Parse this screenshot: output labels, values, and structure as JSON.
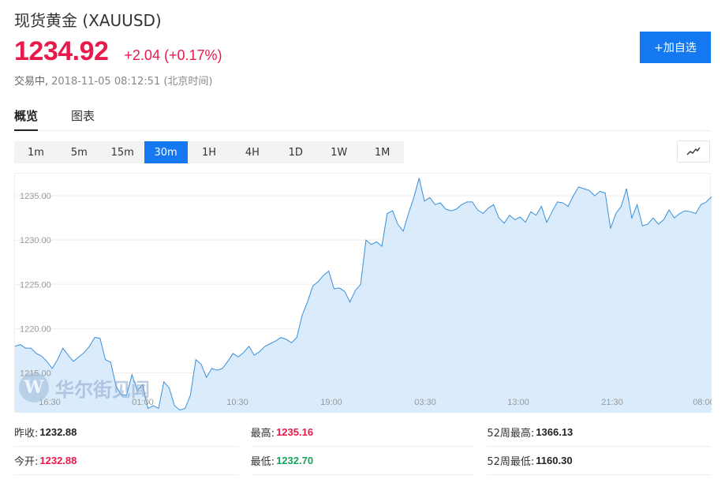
{
  "header": {
    "title": "现货黄金 (XAUUSD)",
    "price": "1234.92",
    "change": "+2.04 (+0.17%)",
    "status": "交易中,",
    "timestamp": "2018-11-05 08:12:51 (北京时间)",
    "add_button": "+加自选"
  },
  "tabs": [
    {
      "label": "概览",
      "active": true
    },
    {
      "label": "图表",
      "active": false
    }
  ],
  "periods": [
    "1m",
    "5m",
    "15m",
    "30m",
    "1H",
    "4H",
    "1D",
    "1W",
    "1M"
  ],
  "active_period": "30m",
  "watermark": {
    "logo": "W",
    "text": "华尔街见闻"
  },
  "colors": {
    "accent": "#1478f0",
    "up": "#e8194b",
    "down": "#17a35a",
    "line": "#3a8fd9",
    "fill": "#daecfb"
  },
  "chart_data": {
    "type": "area",
    "xticks": [
      "16:30",
      "01:00",
      "10:30",
      "19:00",
      "03:30",
      "13:00",
      "21:30",
      "08:00"
    ],
    "yticks": [
      "1215.00",
      "1220.00",
      "1225.00",
      "1230.00",
      "1235.00"
    ],
    "ylim": [
      1210.5,
      1237.5
    ],
    "values": [
      1218.0,
      1218.2,
      1217.8,
      1217.8,
      1217.2,
      1216.9,
      1216.3,
      1215.5,
      1216.5,
      1217.8,
      1217.0,
      1216.3,
      1216.8,
      1217.3,
      1218.0,
      1219.0,
      1218.9,
      1216.5,
      1216.2,
      1213.5,
      1212.5,
      1212.5,
      1214.8,
      1213.0,
      1213.7,
      1211.0,
      1211.3,
      1211.0,
      1214.0,
      1213.3,
      1211.3,
      1210.8,
      1211.0,
      1212.5,
      1216.5,
      1216.0,
      1214.5,
      1215.5,
      1215.3,
      1215.5,
      1216.3,
      1217.2,
      1216.8,
      1217.3,
      1218.0,
      1217.0,
      1217.4,
      1218.0,
      1218.3,
      1218.6,
      1219.0,
      1218.8,
      1218.4,
      1219.0,
      1221.5,
      1223.0,
      1224.8,
      1225.3,
      1226.0,
      1226.5,
      1224.5,
      1224.6,
      1224.2,
      1223.0,
      1224.3,
      1225.0,
      1230.0,
      1229.5,
      1229.8,
      1229.3,
      1233.0,
      1233.3,
      1231.8,
      1231.0,
      1233.0,
      1234.8,
      1237.0,
      1234.4,
      1234.8,
      1234.0,
      1234.2,
      1233.5,
      1233.3,
      1233.5,
      1234.0,
      1234.3,
      1234.3,
      1233.4,
      1233.0,
      1233.6,
      1234.0,
      1232.5,
      1231.9,
      1232.8,
      1232.3,
      1232.6,
      1232.0,
      1233.2,
      1232.8,
      1233.8,
      1232.0,
      1233.2,
      1234.3,
      1234.2,
      1233.8,
      1235.0,
      1236.0,
      1235.8,
      1235.6,
      1235.0,
      1235.5,
      1235.3,
      1231.3,
      1233.0,
      1233.8,
      1235.8,
      1232.5,
      1234.0,
      1231.6,
      1231.8,
      1232.5,
      1231.8,
      1232.3,
      1233.4,
      1232.5,
      1233.0,
      1233.3,
      1233.2,
      1233.0,
      1234.0,
      1234.3,
      1234.9
    ]
  },
  "stats": [
    [
      {
        "label": "昨收:",
        "value": "1232.88",
        "color": ""
      },
      {
        "label": "最高:",
        "value": "1235.16",
        "color": "red"
      },
      {
        "label": "52周最高:",
        "value": "1366.13",
        "color": ""
      }
    ],
    [
      {
        "label": "今开:",
        "value": "1232.88",
        "color": "red"
      },
      {
        "label": "最低:",
        "value": "1232.70",
        "color": "green"
      },
      {
        "label": "52周最低:",
        "value": "1160.30",
        "color": ""
      }
    ]
  ]
}
